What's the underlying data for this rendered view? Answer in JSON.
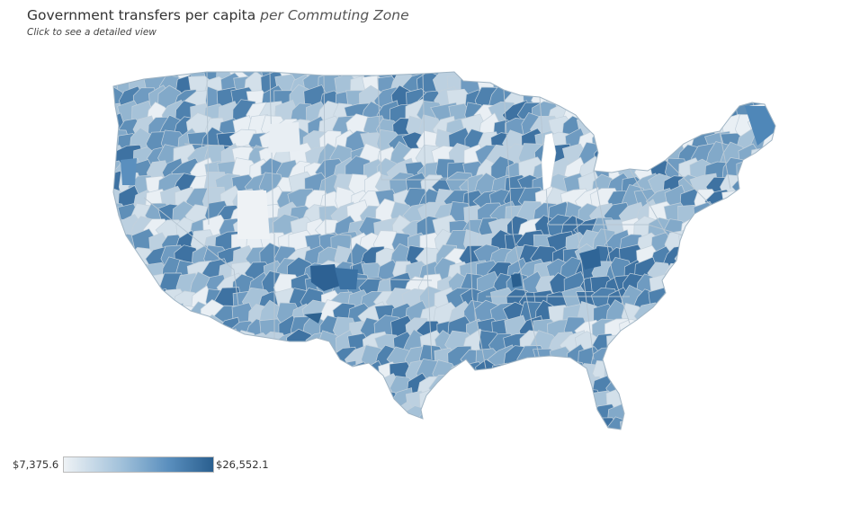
{
  "header": {
    "title": "Government transfers per capita",
    "title_suffix": "per Commuting Zone",
    "hint": "Click to see a detailed view"
  },
  "legend": {
    "min_label": "$7,375.6",
    "max_label": "$26,552.1",
    "min_color": "#eef2f5",
    "max_color": "#2a5f8f"
  },
  "map": {
    "region": "contiguous United States",
    "unit": "commuting zone",
    "border_color": "#c8d3dc",
    "state_border_color": "#a9b8c4"
  }
}
